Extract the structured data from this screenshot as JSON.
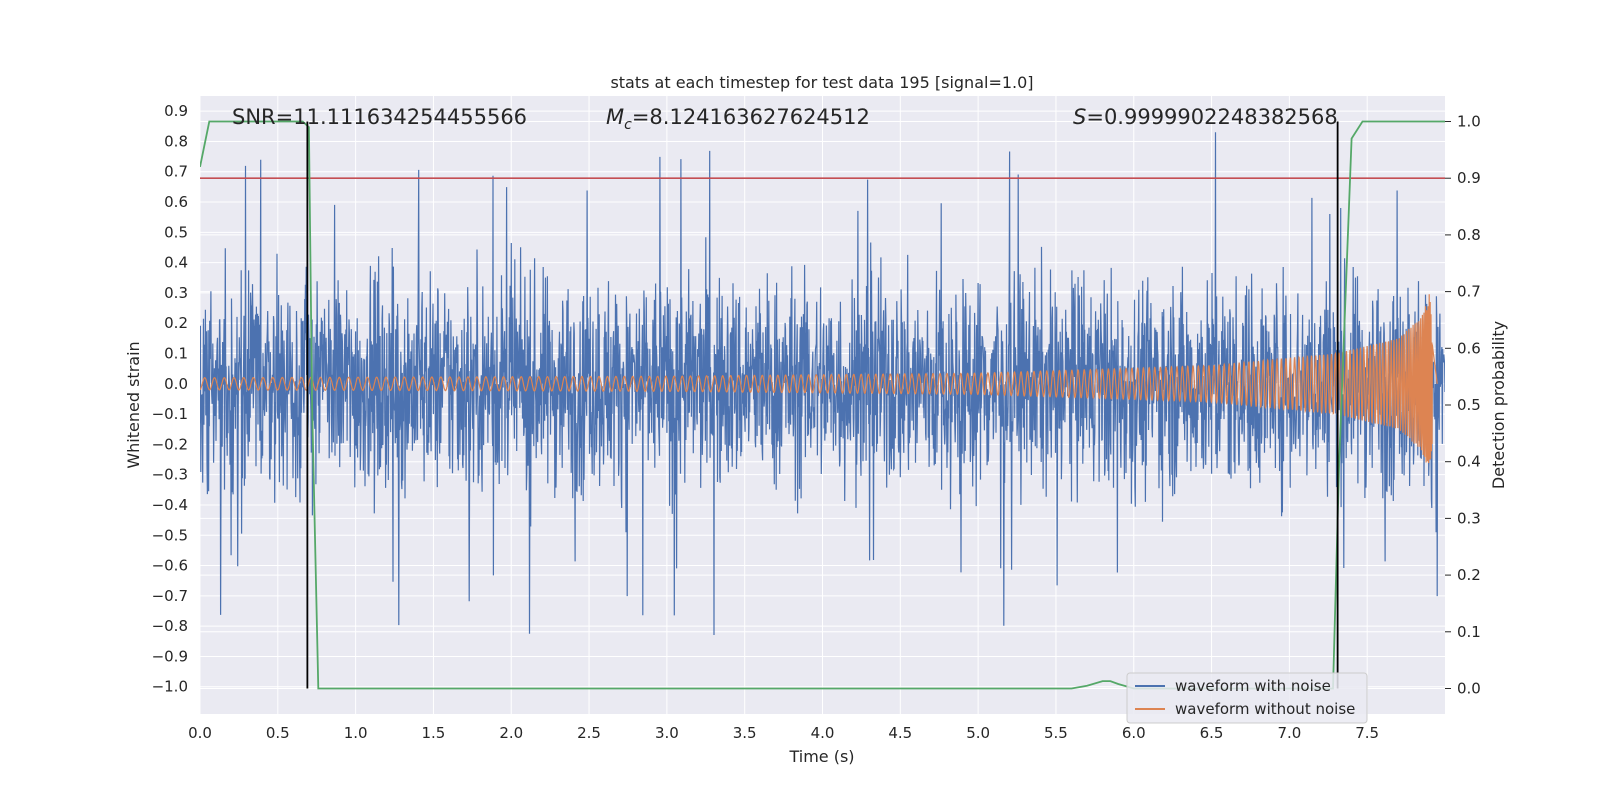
{
  "chart_data": {
    "type": "line",
    "title": "stats at each timestep for test data 195 [signal=1.0]",
    "xlabel": "Time (s)",
    "ylabel": "Whitened strain",
    "ylabel_right": "Detection probability",
    "xlim": [
      0.0,
      8.0
    ],
    "ylim": [
      -1.09,
      0.95
    ],
    "ylim_right": [
      -0.045,
      1.045
    ],
    "x_ticks": [
      0.0,
      0.5,
      1.0,
      1.5,
      2.0,
      2.5,
      3.0,
      3.5,
      4.0,
      4.5,
      5.0,
      5.5,
      6.0,
      6.5,
      7.0,
      7.5
    ],
    "x_tick_labels": [
      "0.0",
      "0.5",
      "1.0",
      "1.5",
      "2.0",
      "2.5",
      "3.0",
      "3.5",
      "4.0",
      "4.5",
      "5.0",
      "5.5",
      "6.0",
      "6.5",
      "7.0",
      "7.5"
    ],
    "y_ticks": [
      0.9,
      0.8,
      0.7,
      0.6,
      0.5,
      0.4,
      0.3,
      0.2,
      0.1,
      0.0,
      -0.1,
      -0.2,
      -0.3,
      -0.4,
      -0.5,
      -0.6,
      -0.7,
      -0.8,
      -0.9,
      -1.0
    ],
    "y_tick_labels": [
      "0.9",
      "0.8",
      "0.7",
      "0.6",
      "0.5",
      "0.4",
      "0.3",
      "0.2",
      "0.1",
      "0.0",
      "−0.1",
      "−0.2",
      "−0.3",
      "−0.4",
      "−0.5",
      "−0.6",
      "−0.7",
      "−0.8",
      "−0.9",
      "−1.0"
    ],
    "y_right_ticks": [
      1.0,
      0.9,
      0.8,
      0.7,
      0.6,
      0.5,
      0.4,
      0.3,
      0.2,
      0.1,
      0.0
    ],
    "y_right_tick_labels": [
      "1.0",
      "0.9",
      "0.8",
      "0.7",
      "0.6",
      "0.5",
      "0.4",
      "0.3",
      "0.2",
      "0.1",
      "0.0"
    ],
    "grid": true,
    "legend_position": "lower-right",
    "series": [
      {
        "name": "waveform with noise",
        "color": "#4c72b0",
        "axis": "left",
        "description_values": {
          "x_range": [
            0.0,
            8.0
          ],
          "typical_envelope": [
            -0.45,
            0.5
          ],
          "peak_max": 0.88,
          "peak_min": -1.0
        }
      },
      {
        "name": "waveform without noise",
        "color": "#dd8452",
        "axis": "left",
        "x_range": [
          0.0,
          7.95
        ],
        "envelope": {
          "x": [
            0.0,
            3.0,
            5.0,
            6.5,
            7.3,
            7.7,
            7.85,
            7.9,
            7.95
          ],
          "amplitude": [
            0.02,
            0.025,
            0.035,
            0.06,
            0.1,
            0.15,
            0.22,
            0.3,
            0.0
          ]
        }
      },
      {
        "name": "",
        "color": "#55a868",
        "axis": "right",
        "x": [
          0.0,
          0.06,
          0.1,
          0.3,
          0.6,
          0.66,
          0.7,
          0.72,
          0.76,
          0.8,
          5.6,
          5.7,
          5.8,
          5.85,
          5.9,
          6.0,
          7.28,
          7.32,
          7.4,
          7.47,
          7.6,
          8.0
        ],
        "y": [
          0.92,
          1.0,
          1.0,
          1.0,
          1.0,
          1.0,
          0.99,
          0.5,
          0.0,
          0.0,
          0.0,
          0.005,
          0.013,
          0.013,
          0.008,
          0.0,
          0.0,
          0.4,
          0.97,
          1.0,
          1.0,
          1.0
        ]
      }
    ],
    "threshold": {
      "value": 0.9,
      "axis": "right",
      "color": "#c44e52"
    },
    "vlines": [
      0.69,
      7.31
    ],
    "annotations": [
      {
        "text": "SNR=11.111634254455566"
      },
      {
        "label_main": "M",
        "label_sub": "c",
        "text": "=8.124163627624512"
      },
      {
        "label_main": "S",
        "text": "=0.9999902248382568"
      }
    ]
  }
}
